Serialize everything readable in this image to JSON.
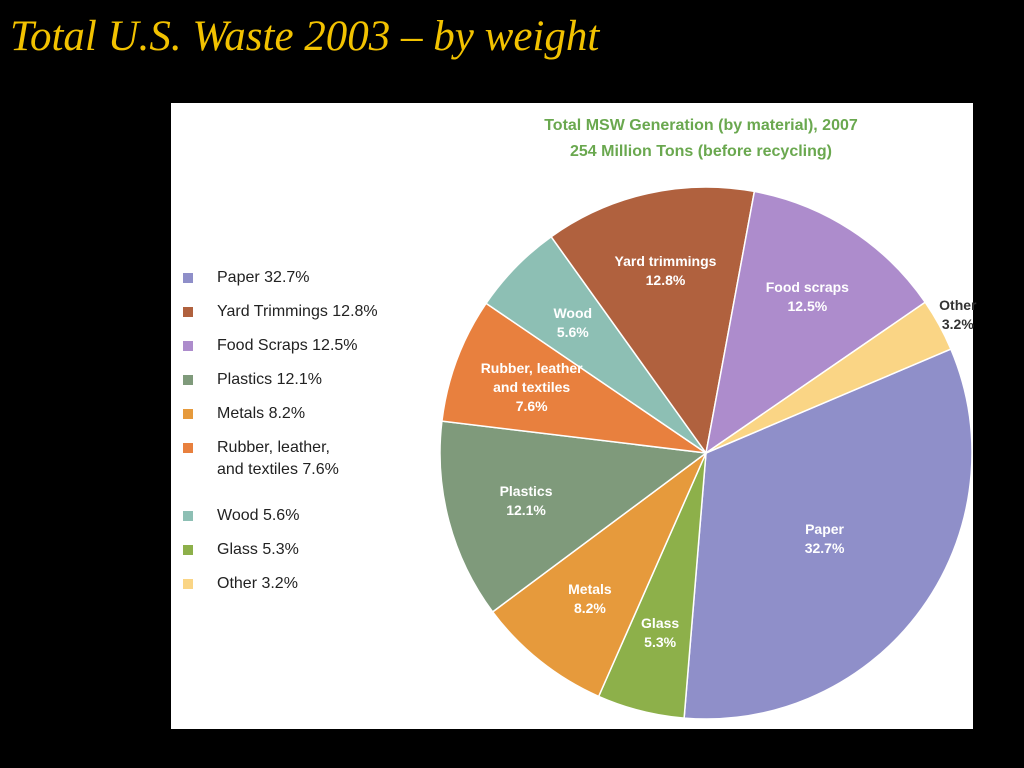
{
  "slide": {
    "title": "Total U.S. Waste 2003 – by weight"
  },
  "colors": {
    "slide_title": "#f2c200",
    "chart_title": "#6aa84f",
    "slice_label_light": "#ffffff",
    "slice_label_dark": "#333333"
  },
  "chart_data": {
    "type": "pie",
    "title": "Total MSW Generation (by material), 2007",
    "subtitle": "254 Million Tons (before recycling)",
    "unit": "%",
    "slices": [
      {
        "name": "Paper",
        "value": 32.7,
        "color": "#8f8fc9",
        "legend": "Paper 32.7%",
        "label": "Paper\n32.7%",
        "label_color": "#ffffff"
      },
      {
        "name": "Glass",
        "value": 5.3,
        "color": "#8db04a",
        "legend": "Glass 5.3%",
        "label": "Glass\n5.3%",
        "label_color": "#ffffff"
      },
      {
        "name": "Metals",
        "value": 8.2,
        "color": "#e69a3c",
        "legend": "Metals 8.2%",
        "label": "Metals\n8.2%",
        "label_color": "#ffffff"
      },
      {
        "name": "Plastics",
        "value": 12.1,
        "color": "#7f9a7b",
        "legend": "Plastics 12.1%",
        "label": "Plastics\n12.1%",
        "label_color": "#ffffff"
      },
      {
        "name": "Rubber, leather and textiles",
        "value": 7.6,
        "color": "#e8803e",
        "legend": "Rubber, leather,\nand textiles 7.6%",
        "label": "Rubber, leather\nand textiles\n7.6%",
        "label_color": "#ffffff"
      },
      {
        "name": "Wood",
        "value": 5.6,
        "color": "#8dbfb4",
        "legend": "Wood 5.6%",
        "label": "Wood\n5.6%",
        "label_color": "#ffffff"
      },
      {
        "name": "Yard trimmings",
        "value": 12.8,
        "color": "#b0613e",
        "legend": "Yard Trimmings 12.8%",
        "label": "Yard trimmings\n12.8%",
        "label_color": "#ffffff"
      },
      {
        "name": "Food scraps",
        "value": 12.5,
        "color": "#ad8ccc",
        "legend": "Food Scraps 12.5%",
        "label": "Food scraps\n12.5%",
        "label_color": "#ffffff"
      },
      {
        "name": "Other",
        "value": 3.2,
        "color": "#fad585",
        "legend": "Other 3.2%",
        "label": "Other\n3.2%",
        "label_color": "#333333"
      }
    ],
    "legend_order": [
      "Paper",
      "Yard trimmings",
      "Food scraps",
      "Plastics",
      "Metals",
      "Rubber, leather and textiles",
      "Wood",
      "Glass",
      "Other"
    ],
    "legend_position": "left"
  }
}
